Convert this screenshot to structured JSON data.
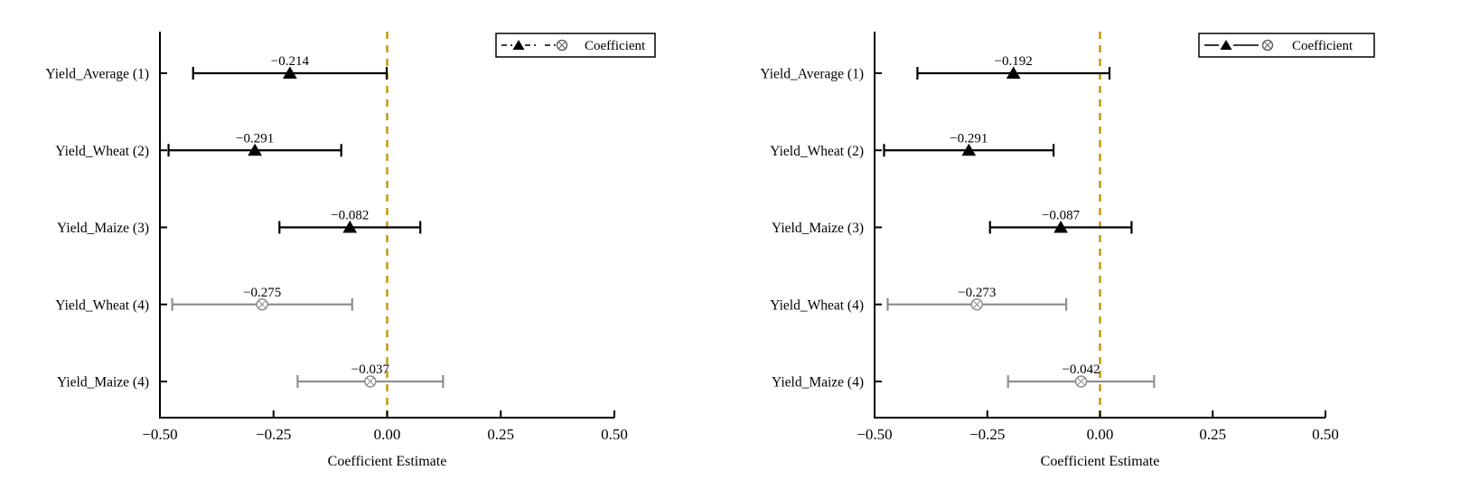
{
  "page": {
    "background": "#ffffff"
  },
  "colors": {
    "black_series": "#000000",
    "gray_series": "#8f8f8f",
    "zero_line_gold": "#c6970f",
    "axis": "#000000",
    "legend_border": "#000000"
  },
  "chart_data": [
    {
      "type": "scatter",
      "subtype": "coefficient-errorbar-plot",
      "panel": "left",
      "title": "",
      "xlabel": "Coefficient Estimate",
      "ylabel": "",
      "xlim": [
        -0.5,
        0.5
      ],
      "xticks": [
        -0.5,
        -0.25,
        0,
        0.25,
        0.5
      ],
      "xtick_labels": [
        "−0.50",
        "−0.25",
        "0.00",
        "0.25",
        "0.50"
      ],
      "grid": false,
      "zero_line": {
        "x": 0,
        "color": "#c6970f",
        "style": "dashed"
      },
      "legend": {
        "label": "Coefficient",
        "position": "top-right",
        "line_style": "dashed"
      },
      "categories": [
        "Yield_Average (1)",
        "Yield_Wheat (2)",
        "Yield_Maize (3)",
        "Yield_Wheat (4)",
        "Yield_Maize (4)"
      ],
      "series": [
        {
          "name": "Coefficient",
          "points": [
            {
              "category": "Yield_Average (1)",
              "estimate": -0.214,
              "label": "−0.214",
              "ci_low": -0.427,
              "ci_high": -0.001,
              "marker": "triangle-filled",
              "color": "#000000"
            },
            {
              "category": "Yield_Wheat (2)",
              "estimate": -0.291,
              "label": "−0.291",
              "ci_low": -0.481,
              "ci_high": -0.101,
              "marker": "triangle-filled",
              "color": "#000000"
            },
            {
              "category": "Yield_Maize (3)",
              "estimate": -0.082,
              "label": "−0.082",
              "ci_low": -0.237,
              "ci_high": 0.073,
              "marker": "triangle-filled",
              "color": "#000000"
            },
            {
              "category": "Yield_Wheat (4)",
              "estimate": -0.275,
              "label": "−0.275",
              "ci_low": -0.473,
              "ci_high": -0.077,
              "marker": "circle-cross",
              "color": "#8f8f8f"
            },
            {
              "category": "Yield_Maize (4)",
              "estimate": -0.037,
              "label": "−0.037",
              "ci_low": -0.197,
              "ci_high": 0.123,
              "marker": "circle-cross",
              "color": "#8f8f8f"
            }
          ]
        }
      ]
    },
    {
      "type": "scatter",
      "subtype": "coefficient-errorbar-plot",
      "panel": "right",
      "title": "",
      "xlabel": "Coefficient Estimate",
      "ylabel": "",
      "xlim": [
        -0.5,
        0.5
      ],
      "xticks": [
        -0.5,
        -0.25,
        0,
        0.25,
        0.5
      ],
      "xtick_labels": [
        "−0.50",
        "−0.25",
        "0.00",
        "0.25",
        "0.50"
      ],
      "grid": false,
      "zero_line": {
        "x": 0,
        "color": "#c6970f",
        "style": "dashed"
      },
      "legend": {
        "label": "Coefficient",
        "position": "top-right",
        "line_style": "solid"
      },
      "categories": [
        "Yield_Average (1)",
        "Yield_Wheat (2)",
        "Yield_Maize (3)",
        "Yield_Wheat (4)",
        "Yield_Maize (4)"
      ],
      "series": [
        {
          "name": "Coefficient",
          "points": [
            {
              "category": "Yield_Average (1)",
              "estimate": -0.192,
              "label": "−0.192",
              "ci_low": -0.405,
              "ci_high": 0.021,
              "marker": "triangle-filled",
              "color": "#000000"
            },
            {
              "category": "Yield_Wheat (2)",
              "estimate": -0.291,
              "label": "−0.291",
              "ci_low": -0.479,
              "ci_high": -0.103,
              "marker": "triangle-filled",
              "color": "#000000"
            },
            {
              "category": "Yield_Maize (3)",
              "estimate": -0.087,
              "label": "−0.087",
              "ci_low": -0.244,
              "ci_high": 0.07,
              "marker": "triangle-filled",
              "color": "#000000"
            },
            {
              "category": "Yield_Wheat (4)",
              "estimate": -0.273,
              "label": "−0.273",
              "ci_low": -0.471,
              "ci_high": -0.075,
              "marker": "circle-cross",
              "color": "#8f8f8f"
            },
            {
              "category": "Yield_Maize (4)",
              "estimate": -0.042,
              "label": "−0.042",
              "ci_low": -0.204,
              "ci_high": 0.12,
              "marker": "circle-cross",
              "color": "#8f8f8f"
            }
          ]
        }
      ]
    }
  ]
}
